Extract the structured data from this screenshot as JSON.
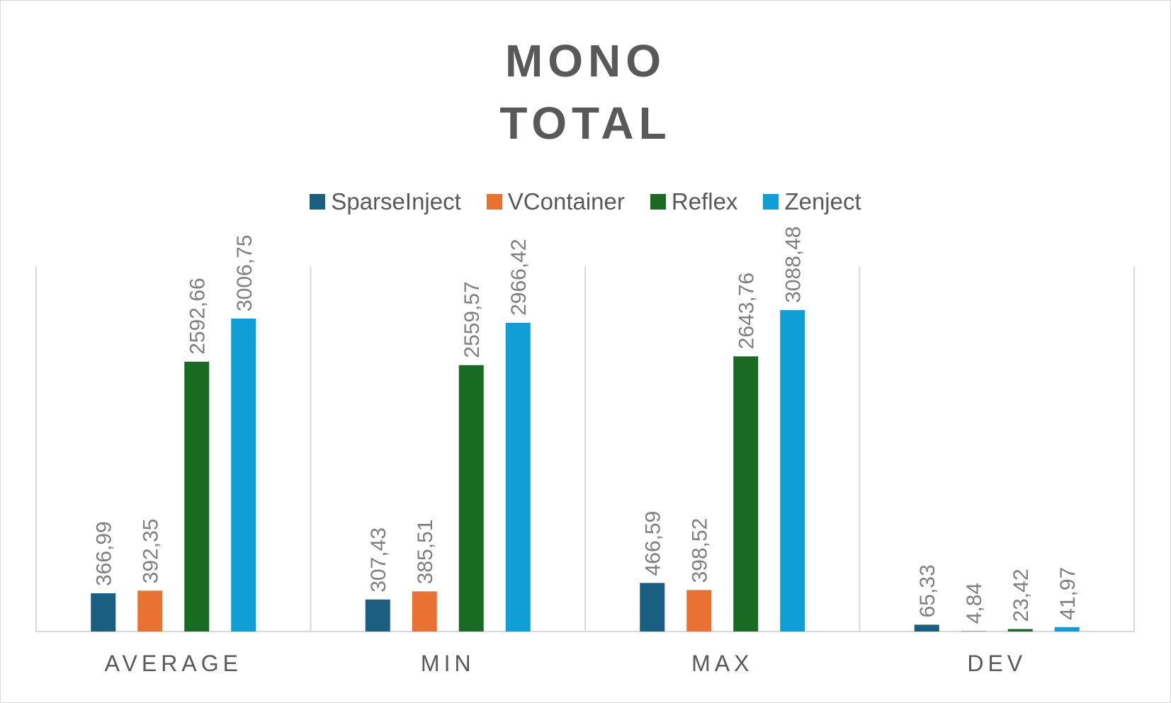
{
  "chart_data": {
    "type": "bar",
    "title_lines": [
      "MONO",
      "TOTAL"
    ],
    "categories": [
      "AVERAGE",
      "MIN",
      "MAX",
      "DEV"
    ],
    "series": [
      {
        "name": "SparseInject",
        "color": "#1a5e82",
        "values": [
          366.99,
          307.43,
          466.59,
          65.33
        ],
        "labels": [
          "366,99",
          "307,43",
          "466,59",
          "65,33"
        ]
      },
      {
        "name": "VContainer",
        "color": "#e97132",
        "values": [
          392.35,
          385.51,
          398.52,
          4.84
        ],
        "labels": [
          "392,35",
          "385,51",
          "398,52",
          "4,84"
        ]
      },
      {
        "name": "Reflex",
        "color": "#196b24",
        "values": [
          2592.66,
          2559.57,
          2643.76,
          23.42
        ],
        "labels": [
          "2592,66",
          "2559,57",
          "2643,76",
          "23,42"
        ]
      },
      {
        "name": "Zenject",
        "color": "#0f9ed5",
        "values": [
          3006.75,
          2966.42,
          3088.48,
          41.97
        ],
        "labels": [
          "3006,75",
          "2966,42",
          "3088,48",
          "41,97"
        ]
      }
    ],
    "legend_position": "top",
    "grid": "vertical category separators",
    "ylim": [
      0,
      3500
    ]
  }
}
